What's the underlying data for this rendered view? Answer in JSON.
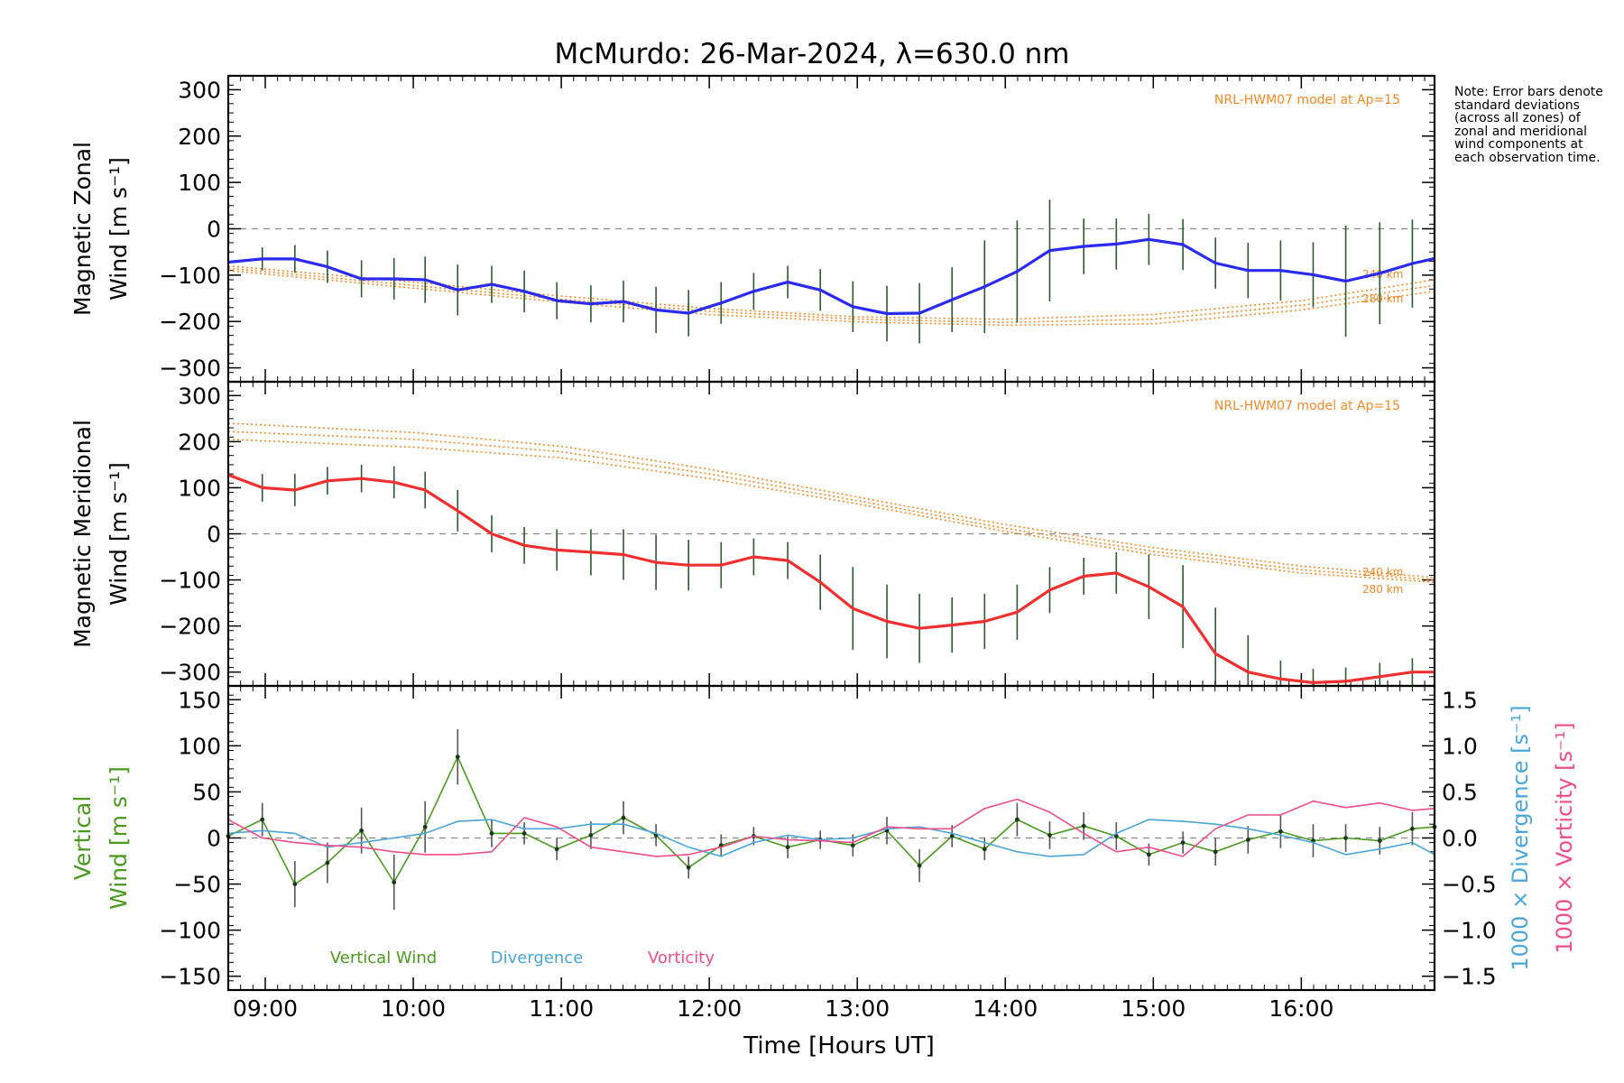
{
  "title": "McMurdo: 26-Mar-2024, λ=630.0 nm",
  "note": "Note: Error bars denote standard deviations (across all zones) of zonal and meridional wind components at each observation time.",
  "xaxis": {
    "label": "Time [Hours UT]",
    "range_hours": [
      8.75,
      16.9
    ],
    "ticks": [
      9,
      10,
      11,
      12,
      13,
      14,
      15,
      16
    ],
    "tick_labels": [
      "09:00",
      "10:00",
      "11:00",
      "12:00",
      "13:00",
      "14:00",
      "15:00",
      "16:00"
    ]
  },
  "colors": {
    "zonal": "#2b2bf0",
    "meridional": "#f03030",
    "vertical": "#4a9a20",
    "divergence": "#4aa6d6",
    "vorticity": "#ee4d8a",
    "model": "#f08a28",
    "errorbar": "#222222",
    "zero": "#888888"
  },
  "chart_data": [
    {
      "type": "line",
      "panel": "zonal",
      "ylabel_line1": "Magnetic Zonal",
      "ylabel_line2": "Wind [m s⁻¹]",
      "ylim": [
        -330,
        330
      ],
      "yticks": [
        -300,
        -200,
        -100,
        0,
        100,
        200,
        300
      ],
      "model_label": "NRL-HWM07 model at Ap=15",
      "model_alt_labels": [
        "240 km",
        "280 km"
      ],
      "x": [
        8.75,
        8.98,
        9.2,
        9.42,
        9.65,
        9.87,
        10.08,
        10.3,
        10.53,
        10.75,
        10.97,
        11.2,
        11.42,
        11.64,
        11.86,
        12.08,
        12.3,
        12.53,
        12.75,
        12.97,
        13.2,
        13.42,
        13.64,
        13.86,
        14.08,
        14.3,
        14.53,
        14.75,
        14.97,
        15.2,
        15.42,
        15.64,
        15.86,
        16.08,
        16.3,
        16.53,
        16.75,
        16.9
      ],
      "series": [
        {
          "name": "zonal",
          "values": [
            -72,
            -65,
            -65,
            -82,
            -108,
            -108,
            -110,
            -132,
            -120,
            -135,
            -155,
            -162,
            -157,
            -175,
            -182,
            -160,
            -135,
            -115,
            -132,
            -168,
            -183,
            -182,
            -153,
            -125,
            -92,
            -47,
            -38,
            -33,
            -23,
            -34,
            -74,
            -90,
            -90,
            -99,
            -113,
            -96,
            -75,
            -64
          ]
        }
      ],
      "error_bars": [
        30,
        25,
        30,
        35,
        40,
        45,
        50,
        55,
        40,
        45,
        40,
        40,
        45,
        50,
        50,
        45,
        40,
        35,
        45,
        55,
        60,
        65,
        70,
        100,
        110,
        110,
        60,
        55,
        55,
        55,
        55,
        60,
        65,
        70,
        120,
        110,
        95,
        70
      ],
      "models": [
        {
          "alt": "240 km",
          "x": [
            8.75,
            10,
            11,
            12,
            13,
            14,
            15,
            16,
            16.9
          ],
          "values": [
            -80,
            -115,
            -145,
            -172,
            -190,
            -195,
            -185,
            -155,
            -110
          ]
        },
        {
          "alt": "260 km",
          "x": [
            8.75,
            10,
            11,
            12,
            13,
            14,
            15,
            16,
            16.9
          ],
          "values": [
            -85,
            -122,
            -152,
            -178,
            -195,
            -202,
            -195,
            -165,
            -122
          ]
        },
        {
          "alt": "280 km",
          "x": [
            8.75,
            10,
            11,
            12,
            13,
            14,
            15,
            16,
            16.9
          ],
          "values": [
            -90,
            -128,
            -158,
            -185,
            -201,
            -208,
            -205,
            -175,
            -135
          ]
        }
      ]
    },
    {
      "type": "line",
      "panel": "meridional",
      "ylabel_line1": "Magnetic Meridional",
      "ylabel_line2": "Wind [m s⁻¹]",
      "ylim": [
        -330,
        330
      ],
      "yticks": [
        -300,
        -200,
        -100,
        0,
        100,
        200,
        300
      ],
      "model_label": "NRL-HWM07 model at Ap=15",
      "model_alt_labels": [
        "240 km",
        "280 km"
      ],
      "x": [
        8.75,
        8.98,
        9.2,
        9.42,
        9.65,
        9.87,
        10.08,
        10.3,
        10.53,
        10.75,
        10.97,
        11.2,
        11.42,
        11.64,
        11.86,
        12.08,
        12.3,
        12.53,
        12.75,
        12.97,
        13.2,
        13.42,
        13.64,
        13.86,
        14.08,
        14.3,
        14.53,
        14.75,
        14.97,
        15.2,
        15.42,
        15.64,
        15.86,
        16.08,
        16.3,
        16.53,
        16.75,
        16.9
      ],
      "series": [
        {
          "name": "meridional",
          "values": [
            128,
            100,
            95,
            115,
            120,
            112,
            95,
            50,
            0,
            -25,
            -35,
            -40,
            -45,
            -62,
            -68,
            -68,
            -50,
            -58,
            -105,
            -162,
            -190,
            -205,
            -198,
            -190,
            -170,
            -122,
            -92,
            -85,
            -115,
            -158,
            -260,
            -300,
            -315,
            -323,
            -320,
            -310,
            -300,
            -300
          ]
        }
      ],
      "error_bars": [
        35,
        30,
        35,
        30,
        30,
        35,
        40,
        45,
        40,
        40,
        45,
        50,
        55,
        60,
        55,
        50,
        40,
        40,
        60,
        90,
        80,
        75,
        60,
        60,
        60,
        50,
        40,
        45,
        70,
        90,
        100,
        80,
        40,
        30,
        30,
        30,
        30,
        30
      ],
      "models": [
        {
          "alt": "240 km",
          "x": [
            8.75,
            10,
            11,
            12,
            13,
            14,
            15,
            16,
            16.9
          ],
          "values": [
            240,
            220,
            190,
            140,
            80,
            20,
            -30,
            -70,
            -95
          ]
        },
        {
          "alt": "260 km",
          "x": [
            8.75,
            10,
            11,
            12,
            13,
            14,
            15,
            16,
            16.9
          ],
          "values": [
            222,
            205,
            178,
            130,
            72,
            12,
            -38,
            -78,
            -100
          ]
        },
        {
          "alt": "280 km",
          "x": [
            8.75,
            10,
            11,
            12,
            13,
            14,
            15,
            16,
            16.9
          ],
          "values": [
            205,
            188,
            165,
            120,
            65,
            5,
            -45,
            -85,
            -105
          ]
        }
      ]
    },
    {
      "type": "line",
      "panel": "vertical",
      "ylabel_line1": "Vertical",
      "ylabel_line2": "Wind [m s⁻¹]",
      "ylim": [
        -165,
        165
      ],
      "yticks": [
        -150,
        -100,
        -50,
        0,
        50,
        100,
        150
      ],
      "y2_label_divergence": "1000 × Divergence [s⁻¹]",
      "y2_label_vorticity": "1000 × Vorticity [s⁻¹]",
      "y2lim": [
        -1.65,
        1.65
      ],
      "y2ticks": [
        -1.5,
        -1.0,
        -0.5,
        0.0,
        0.5,
        1.0,
        1.5
      ],
      "y2tick_labels": [
        "−1.5",
        "−1.0",
        "−0.5",
        "0.0",
        "0.5",
        "1.0",
        "1.5"
      ],
      "legend": [
        "Vertical Wind",
        "Divergence",
        "Vorticity"
      ],
      "x": [
        8.75,
        8.98,
        9.2,
        9.42,
        9.65,
        9.87,
        10.08,
        10.3,
        10.53,
        10.75,
        10.97,
        11.2,
        11.42,
        11.64,
        11.86,
        12.08,
        12.3,
        12.53,
        12.75,
        12.97,
        13.2,
        13.42,
        13.64,
        13.86,
        14.08,
        14.3,
        14.53,
        14.75,
        14.97,
        15.2,
        15.42,
        15.64,
        15.86,
        16.08,
        16.3,
        16.53,
        16.75,
        16.9
      ],
      "series": [
        {
          "name": "Vertical Wind",
          "axis": "left",
          "values": [
            2,
            20,
            -50,
            -27,
            8,
            -48,
            12,
            88,
            5,
            5,
            -12,
            3,
            22,
            3,
            -32,
            -8,
            2,
            -10,
            -2,
            -8,
            8,
            -30,
            2,
            -12,
            20,
            3,
            13,
            2,
            -18,
            -5,
            -15,
            -2,
            7,
            -3,
            0,
            -3,
            10,
            12
          ]
        },
        {
          "name": "Divergence",
          "axis": "right",
          "values": [
            0.05,
            0.08,
            0.05,
            -0.1,
            -0.05,
            0.0,
            0.05,
            0.18,
            0.2,
            0.1,
            0.1,
            0.15,
            0.15,
            0.05,
            -0.1,
            -0.2,
            -0.05,
            0.03,
            -0.02,
            0.0,
            0.1,
            0.12,
            0.05,
            -0.05,
            -0.15,
            -0.2,
            -0.18,
            0.05,
            0.2,
            0.18,
            0.15,
            0.1,
            0.03,
            -0.05,
            -0.18,
            -0.12,
            -0.05,
            -0.18
          ]
        },
        {
          "name": "Vorticity",
          "axis": "right",
          "values": [
            0.2,
            0.0,
            -0.05,
            -0.08,
            -0.1,
            -0.15,
            -0.18,
            -0.18,
            -0.15,
            0.22,
            0.12,
            -0.1,
            -0.15,
            -0.2,
            -0.18,
            -0.1,
            0.02,
            -0.02,
            -0.03,
            -0.05,
            0.12,
            0.1,
            0.1,
            0.32,
            0.42,
            0.28,
            0.05,
            -0.15,
            -0.1,
            -0.2,
            0.1,
            0.25,
            0.25,
            0.4,
            0.33,
            0.38,
            0.3,
            0.32
          ]
        }
      ],
      "error_bars": [
        20,
        18,
        25,
        22,
        25,
        30,
        28,
        30,
        15,
        12,
        12,
        15,
        18,
        12,
        12,
        12,
        10,
        12,
        10,
        12,
        15,
        18,
        12,
        12,
        18,
        15,
        15,
        15,
        12,
        12,
        15,
        15,
        18,
        18,
        15,
        15,
        18,
        15
      ]
    }
  ]
}
